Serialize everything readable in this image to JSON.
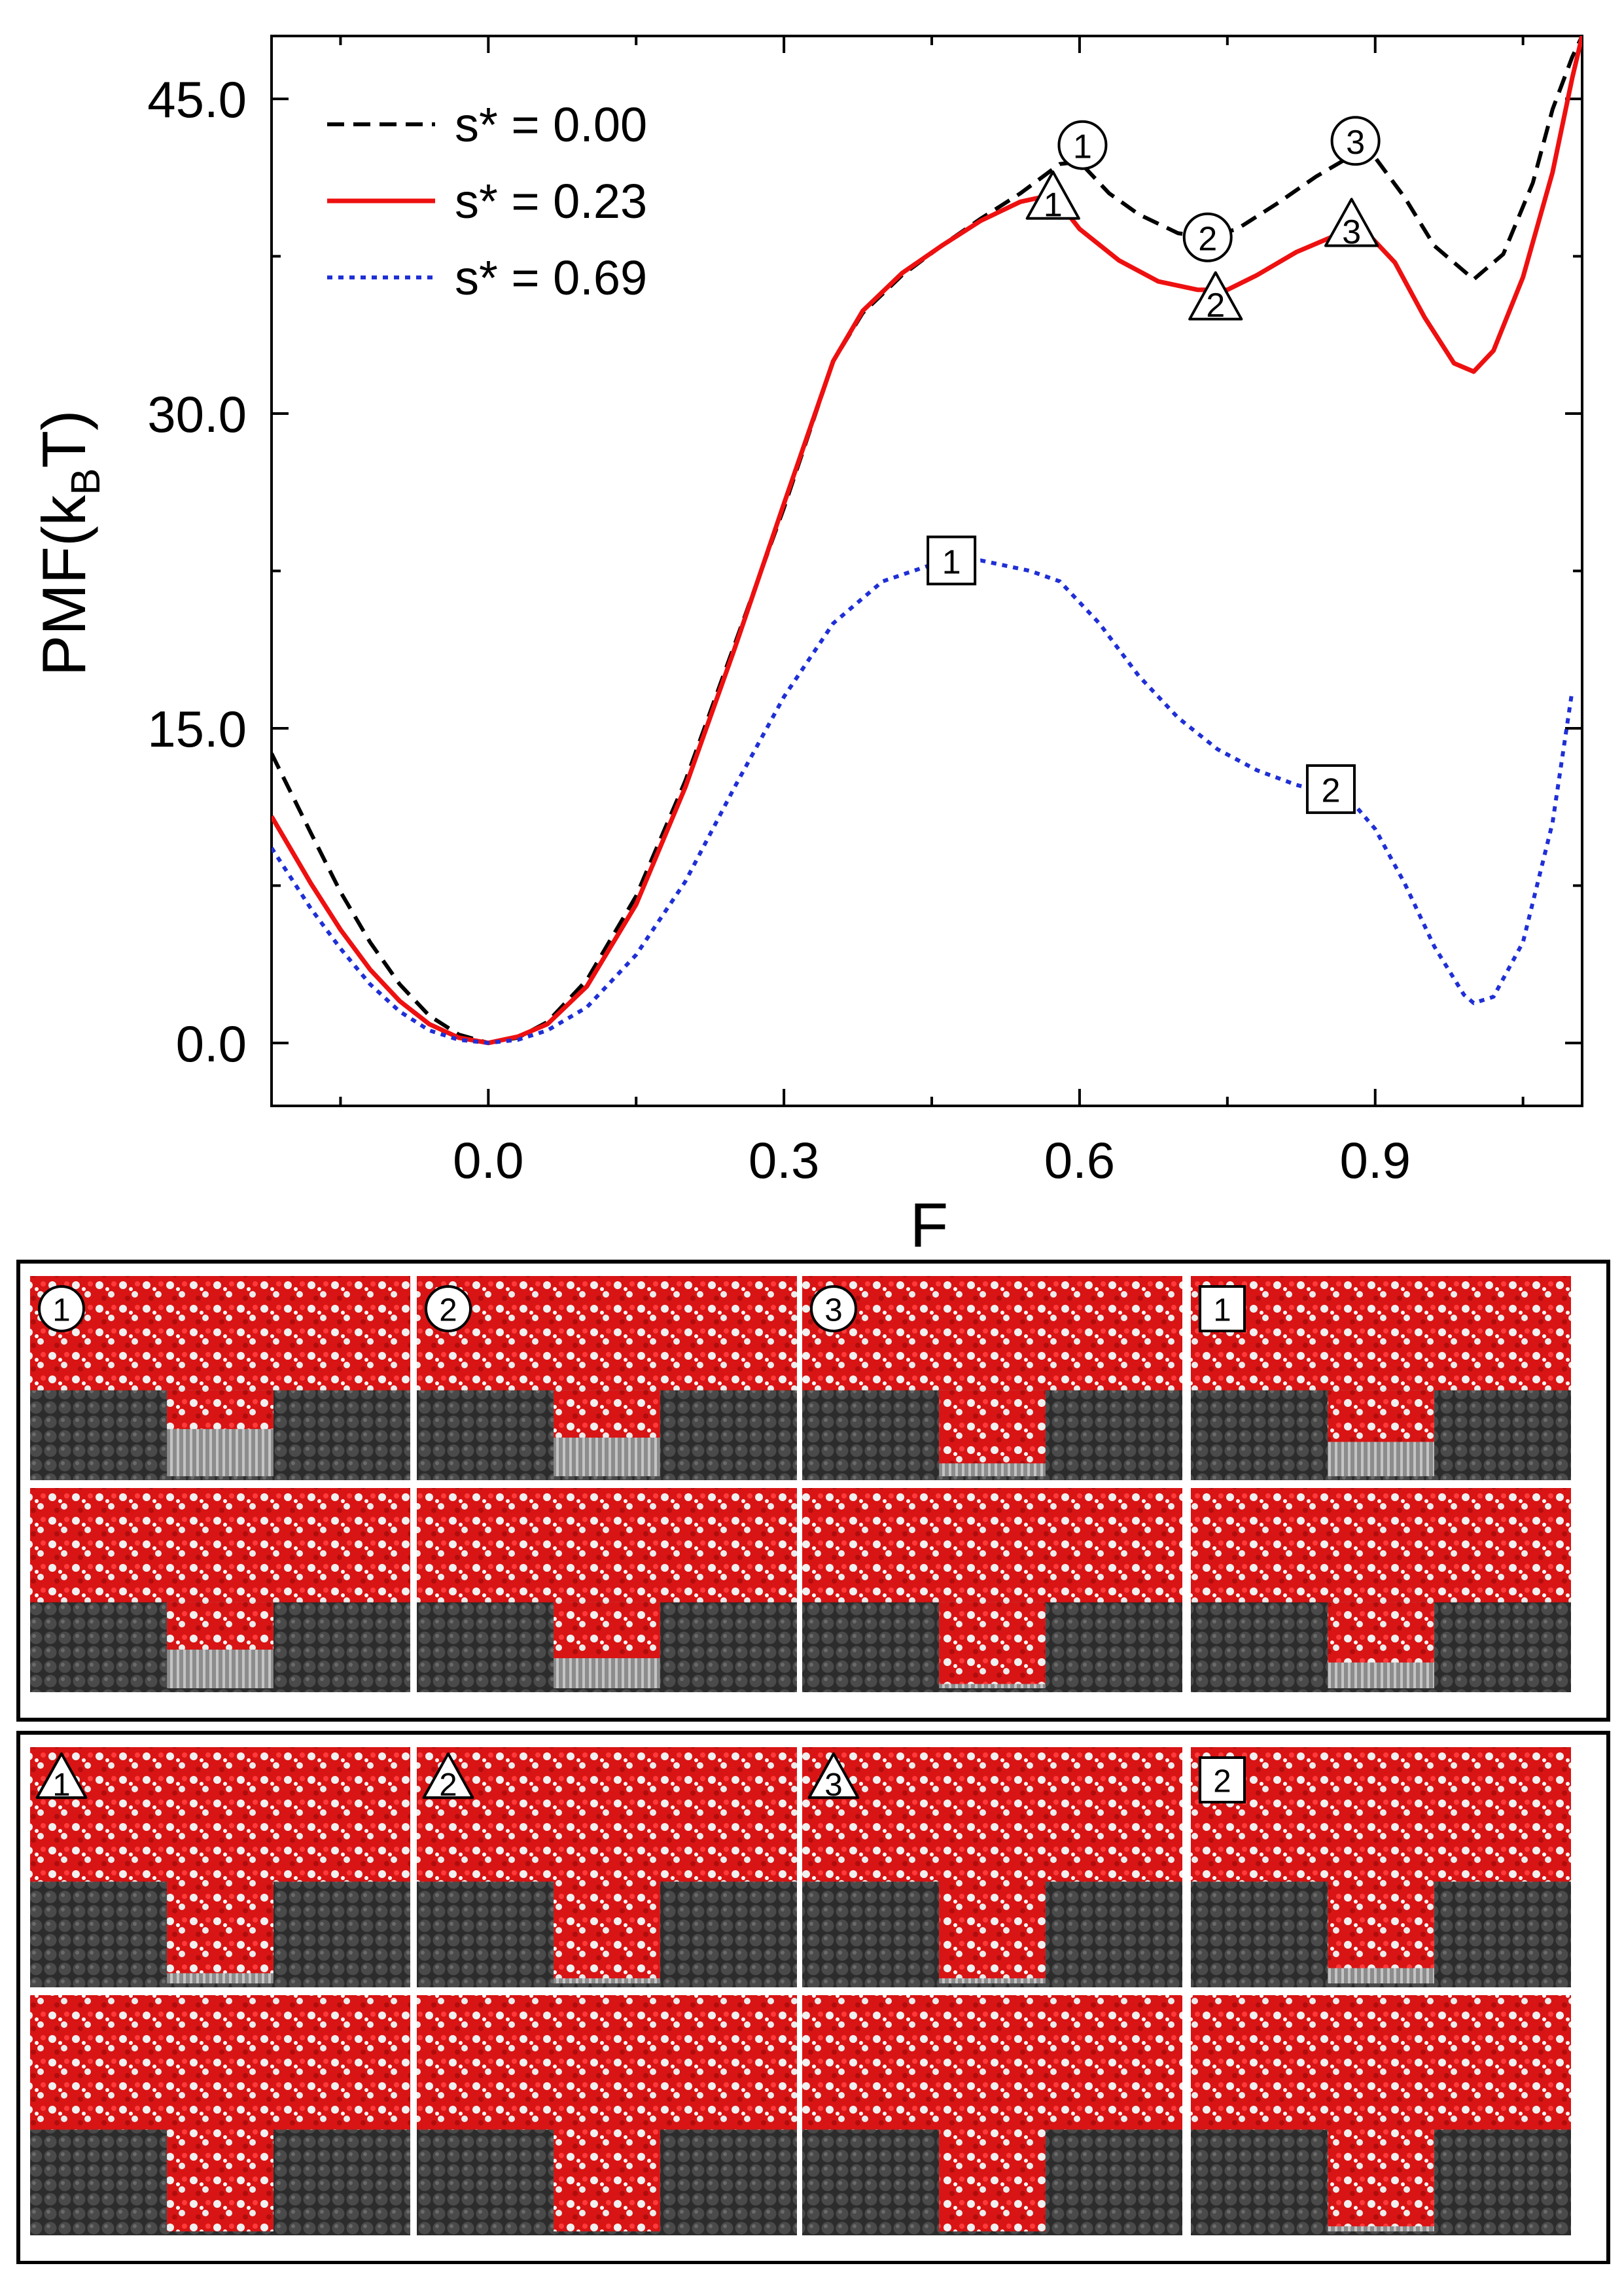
{
  "chart_data": {
    "type": "line",
    "xlabel": "F",
    "ylabel_main": "PMF(k",
    "ylabel_sub": "B",
    "ylabel_tail": "T)",
    "xlim": [
      -0.22,
      1.11
    ],
    "ylim": [
      -3.0,
      48.0
    ],
    "xticks": [
      0.0,
      0.3,
      0.6,
      0.9
    ],
    "xtick_labels": [
      "0.0",
      "0.3",
      "0.6",
      "0.9"
    ],
    "xminor": [
      -0.15,
      0.15,
      0.45,
      0.75,
      1.05
    ],
    "yticks": [
      0.0,
      15.0,
      30.0,
      45.0
    ],
    "ytick_labels": [
      "0.0",
      "15.0",
      "30.0",
      "45.0"
    ],
    "yminor": [
      7.5,
      22.5,
      37.5
    ],
    "grid": false,
    "legend_position": "top-left",
    "series": [
      {
        "name": "s* = 0.00",
        "color": "#000000",
        "dash": "dashed",
        "x": [
          -0.22,
          -0.18,
          -0.15,
          -0.12,
          -0.09,
          -0.06,
          -0.03,
          0.0,
          0.03,
          0.06,
          0.1,
          0.15,
          0.2,
          0.25,
          0.3,
          0.35,
          0.38,
          0.42,
          0.46,
          0.5,
          0.54,
          0.58,
          0.6,
          0.63,
          0.66,
          0.7,
          0.73,
          0.76,
          0.8,
          0.84,
          0.88,
          0.9,
          0.93,
          0.96,
          1.0,
          1.03,
          1.06,
          1.08,
          1.1,
          1.11
        ],
        "y": [
          13.8,
          10.0,
          7.2,
          4.8,
          2.8,
          1.3,
          0.4,
          0.0,
          0.25,
          1.0,
          3.0,
          7.0,
          12.5,
          19.0,
          25.5,
          32.5,
          34.8,
          36.6,
          38.0,
          39.3,
          40.5,
          41.9,
          42.0,
          40.5,
          39.5,
          38.6,
          38.4,
          38.8,
          40.0,
          41.3,
          42.4,
          42.2,
          40.3,
          38.0,
          36.4,
          37.6,
          41.0,
          44.5,
          47.0,
          48.0
        ]
      },
      {
        "name": "s* = 0.23",
        "color": "#ee1010",
        "dash": "solid",
        "x": [
          -0.22,
          -0.18,
          -0.15,
          -0.12,
          -0.09,
          -0.06,
          -0.03,
          0.0,
          0.03,
          0.06,
          0.1,
          0.15,
          0.2,
          0.25,
          0.3,
          0.35,
          0.38,
          0.42,
          0.46,
          0.5,
          0.54,
          0.57,
          0.58,
          0.6,
          0.64,
          0.68,
          0.72,
          0.75,
          0.78,
          0.82,
          0.86,
          0.89,
          0.92,
          0.95,
          0.98,
          1.0,
          1.02,
          1.05,
          1.08,
          1.1,
          1.11
        ],
        "y": [
          10.8,
          7.6,
          5.4,
          3.5,
          2.0,
          0.9,
          0.25,
          0.0,
          0.3,
          0.9,
          2.7,
          6.6,
          12.2,
          18.8,
          25.7,
          32.5,
          34.9,
          36.7,
          38.0,
          39.2,
          40.1,
          40.4,
          40.0,
          38.8,
          37.3,
          36.3,
          35.9,
          35.9,
          36.6,
          37.7,
          38.5,
          38.7,
          37.2,
          34.6,
          32.4,
          32.0,
          33.0,
          36.5,
          41.5,
          46.0,
          48.0
        ]
      },
      {
        "name": "s* = 0.69",
        "color": "#1f2fd6",
        "dash": "dotted",
        "x": [
          -0.22,
          -0.18,
          -0.15,
          -0.12,
          -0.09,
          -0.06,
          -0.03,
          0.0,
          0.03,
          0.06,
          0.1,
          0.15,
          0.2,
          0.25,
          0.3,
          0.35,
          0.4,
          0.45,
          0.5,
          0.55,
          0.58,
          0.62,
          0.66,
          0.7,
          0.74,
          0.78,
          0.82,
          0.86,
          0.88,
          0.9,
          0.93,
          0.96,
          0.99,
          1.0,
          1.02,
          1.05,
          1.08,
          1.1
        ],
        "y": [
          9.3,
          6.4,
          4.5,
          2.8,
          1.5,
          0.6,
          0.15,
          0.0,
          0.15,
          0.6,
          1.7,
          4.2,
          7.7,
          12.2,
          16.5,
          20.0,
          22.0,
          22.8,
          23.0,
          22.5,
          22.0,
          20.0,
          17.5,
          15.5,
          14.0,
          13.0,
          12.3,
          11.8,
          11.3,
          10.2,
          7.6,
          4.6,
          2.3,
          1.9,
          2.2,
          4.8,
          10.5,
          16.8
        ]
      }
    ],
    "markers": [
      {
        "shape": "circle",
        "label": "1",
        "x": 0.603,
        "y": 42.8
      },
      {
        "shape": "circle",
        "label": "2",
        "x": 0.73,
        "y": 38.4
      },
      {
        "shape": "circle",
        "label": "3",
        "x": 0.88,
        "y": 43.0
      },
      {
        "shape": "triangle",
        "label": "1",
        "x": 0.573,
        "y": 40.2
      },
      {
        "shape": "triangle",
        "label": "2",
        "x": 0.738,
        "y": 35.4
      },
      {
        "shape": "triangle",
        "label": "3",
        "x": 0.876,
        "y": 38.9
      },
      {
        "shape": "square",
        "label": "1",
        "x": 0.47,
        "y": 23.0
      },
      {
        "shape": "square",
        "label": "2",
        "x": 0.855,
        "y": 12.1
      }
    ]
  },
  "snapshots": {
    "panels": [
      {
        "shape": "circle",
        "label": "1",
        "group": 0,
        "col": 0
      },
      {
        "shape": "circle",
        "label": "2",
        "group": 0,
        "col": 1
      },
      {
        "shape": "circle",
        "label": "3",
        "group": 0,
        "col": 2
      },
      {
        "shape": "square",
        "label": "1",
        "group": 0,
        "col": 3
      },
      {
        "shape": "triangle",
        "label": "1",
        "group": 1,
        "col": 0
      },
      {
        "shape": "triangle",
        "label": "2",
        "group": 1,
        "col": 1
      },
      {
        "shape": "triangle",
        "label": "3",
        "group": 1,
        "col": 2
      },
      {
        "shape": "square",
        "label": "2",
        "group": 1,
        "col": 3
      }
    ],
    "colors": {
      "water_red": "#d81414",
      "water_white": "#e8e8e8",
      "substrate": "#3a3a3a",
      "pore_fill": "#9a9a9a"
    }
  }
}
